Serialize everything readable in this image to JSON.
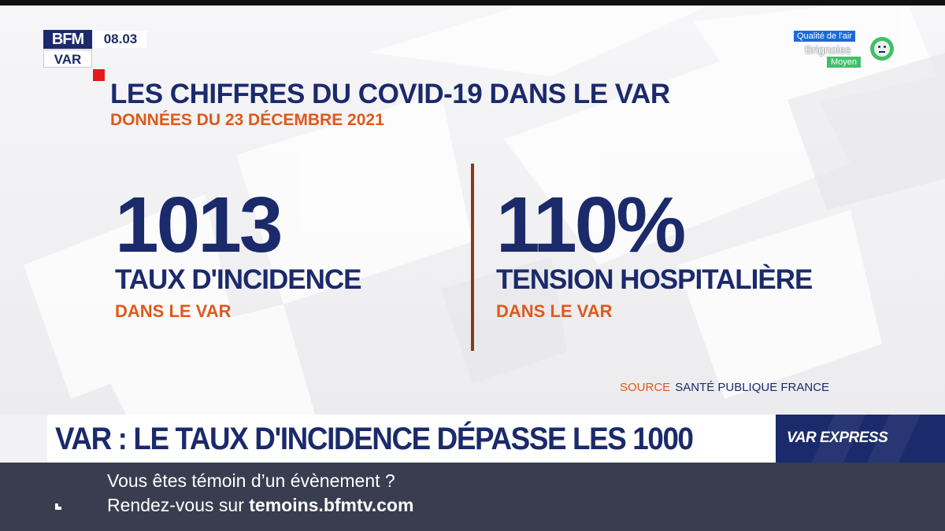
{
  "channel": {
    "logo_top": "BFM",
    "logo_bottom": "VAR",
    "time": "08.03"
  },
  "air_quality": {
    "label": "Qualité de l'air",
    "city": "Brignoles",
    "level": "Moyen",
    "icon": "neutral-face-icon"
  },
  "graphic": {
    "title": "LES CHIFFRES DU COVID-19 DANS LE VAR",
    "subtitle": "DONNÉES DU 23 DÉCEMBRE 2021",
    "stats": [
      {
        "value": "1013",
        "label": "TAUX D'INCIDENCE",
        "sub": "DANS LE VAR"
      },
      {
        "value": "110%",
        "label": "TENSION HOSPITALIÈRE",
        "sub": "DANS LE VAR"
      }
    ],
    "source_label": "SOURCE",
    "source_value": "SANTÉ PUBLIQUE FRANCE"
  },
  "lower_third": {
    "headline": "VAR : LE TAUX D'INCIDENCE DÉPASSE LES 1000",
    "program": "VAR EXPRESS"
  },
  "ticker": {
    "line1": "Vous êtes témoin d’un évènement ?",
    "line2_prefix": "Rendez-vous sur ",
    "line2_link": "temoins.bfmtv.com"
  },
  "colors": {
    "navy": "#1b2a6b",
    "orange": "#e0581a",
    "red": "#e21b1b",
    "green": "#3ec06a",
    "ticker_bg": "#3a3d50"
  }
}
